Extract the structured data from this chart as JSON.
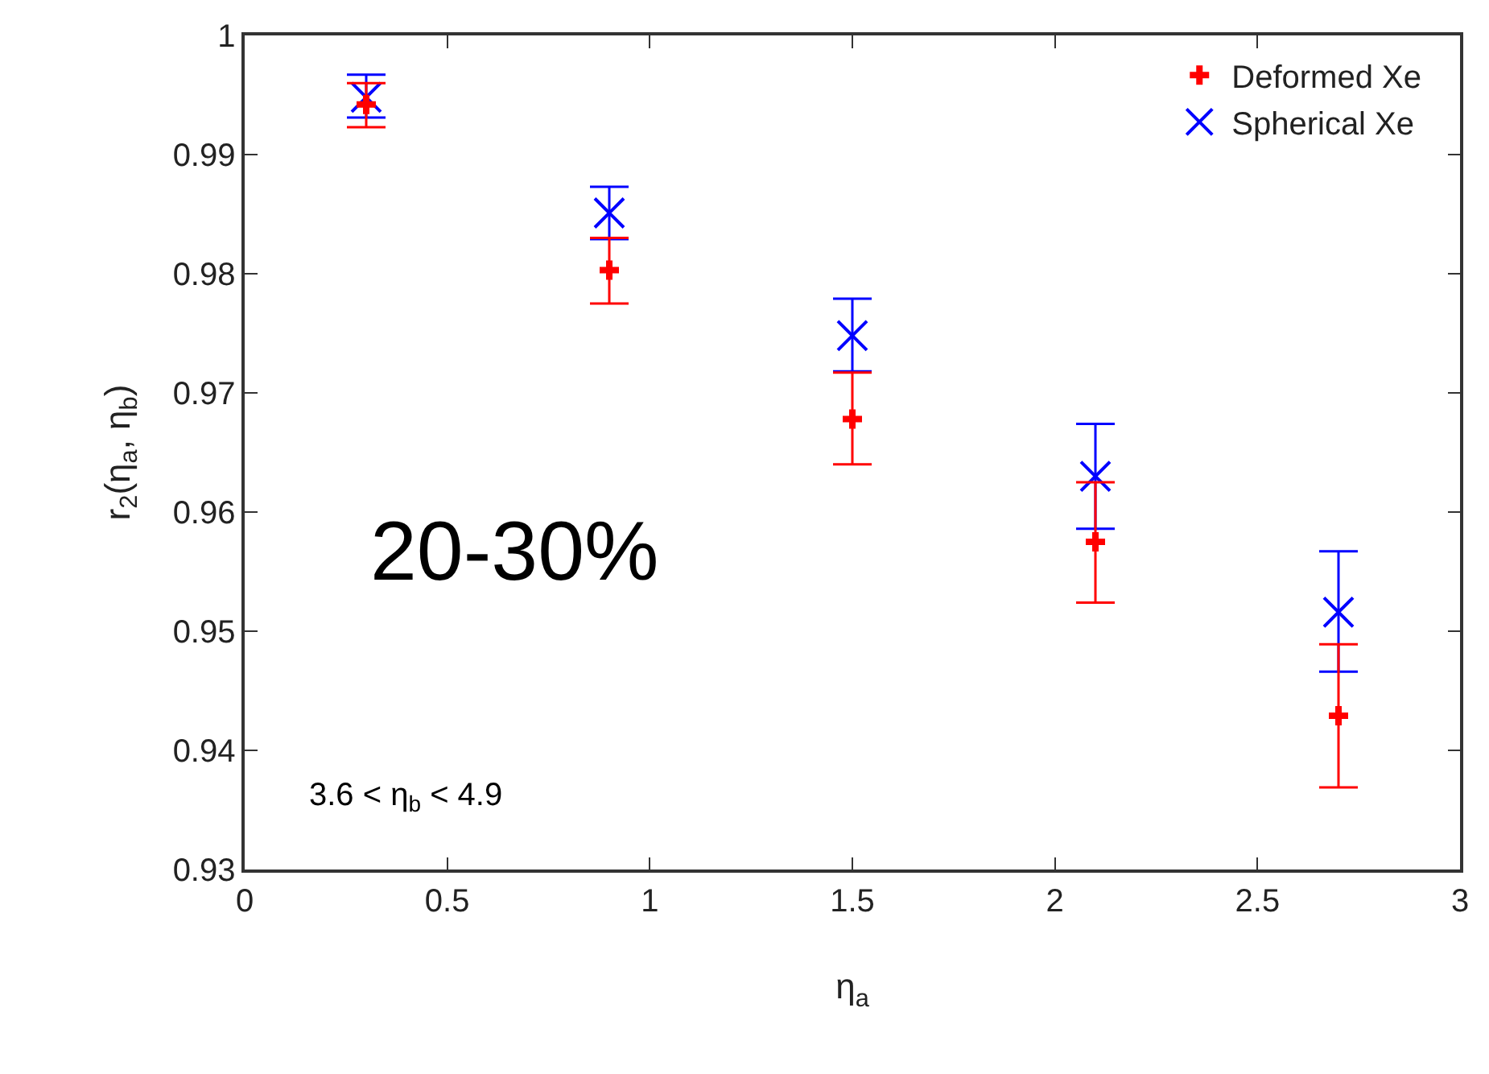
{
  "chart_data": {
    "type": "scatter",
    "xlabel": "η$_{a}$",
    "ylabel": "r$_{2}$(η$_{a}$, η$_{b}$)",
    "x": [
      0.3,
      0.9,
      1.5,
      2.1,
      2.7
    ],
    "series": [
      {
        "name": "Deformed Xe",
        "color": "#ff0000",
        "marker": "cross",
        "values": [
          0.9942,
          0.9803,
          0.9678,
          0.9575,
          0.9429
        ],
        "errors": [
          [
            0.9923,
            0.996
          ],
          [
            0.9775,
            0.983
          ],
          [
            0.964,
            0.9717
          ],
          [
            0.9524,
            0.9625
          ],
          [
            0.9369,
            0.9489
          ]
        ]
      },
      {
        "name": "Spherical Xe",
        "color": "#0000ff",
        "marker": "x",
        "values": [
          0.9948,
          0.9851,
          0.9748,
          0.963,
          0.9516
        ],
        "errors": [
          [
            0.9931,
            0.9967
          ],
          [
            0.9829,
            0.9873
          ],
          [
            0.9718,
            0.9779
          ],
          [
            0.9586,
            0.9674
          ],
          [
            0.9466,
            0.9567
          ]
        ]
      }
    ],
    "xlim": [
      0,
      3
    ],
    "xticks": [
      0,
      0.5,
      1,
      1.5,
      2,
      2.5,
      3
    ],
    "ylim": [
      0.93,
      1
    ],
    "yticks": [
      0.93,
      0.94,
      0.95,
      0.96,
      0.97,
      0.98,
      0.99,
      {
        "value": 1,
        "label": "1"
      }
    ],
    "annotations": [
      "20-30%",
      "3.6 < η$_{b}$ < 4.9"
    ],
    "legend": "top right"
  }
}
